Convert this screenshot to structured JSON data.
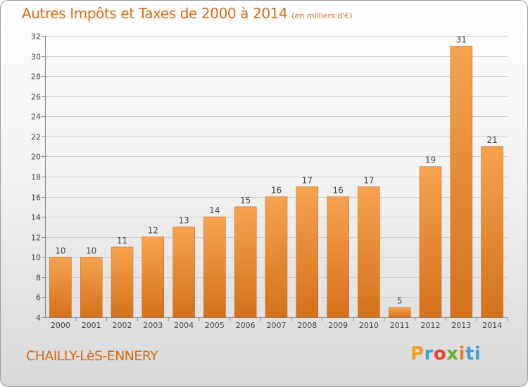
{
  "header": {
    "title": "Autres Impôts et Taxes de 2000 à 2014",
    "unit": "(en milliers d'€)"
  },
  "footer": {
    "city": "CHAILLY-LèS-ENNERY",
    "logo_text": "Proxiti",
    "logo_letters": [
      "P",
      "r",
      "o",
      "x",
      "i",
      "ti"
    ]
  },
  "colors": {
    "accent": "#d96a12",
    "bar_top": "#f7a34f",
    "bar_bottom": "#d4711a",
    "grid": "#cccccc",
    "axis_text": "#444444"
  },
  "chart_data": {
    "type": "bar",
    "title": "Autres Impôts et Taxes de 2000 à 2014",
    "subtitle": "(en milliers d'€)",
    "xlabel": "",
    "ylabel": "",
    "categories": [
      "2000",
      "2001",
      "2002",
      "2003",
      "2004",
      "2005",
      "2006",
      "2007",
      "2008",
      "2009",
      "2010",
      "2011",
      "2012",
      "2013",
      "2014"
    ],
    "values": [
      10,
      10,
      11,
      12,
      13,
      14,
      15,
      16,
      17,
      16,
      17,
      5,
      19,
      31,
      21
    ],
    "ylim": [
      4,
      32
    ],
    "yticks": [
      4,
      6,
      8,
      10,
      12,
      14,
      16,
      18,
      20,
      22,
      24,
      26,
      28,
      30,
      32
    ],
    "grid": true,
    "legend": "none"
  }
}
